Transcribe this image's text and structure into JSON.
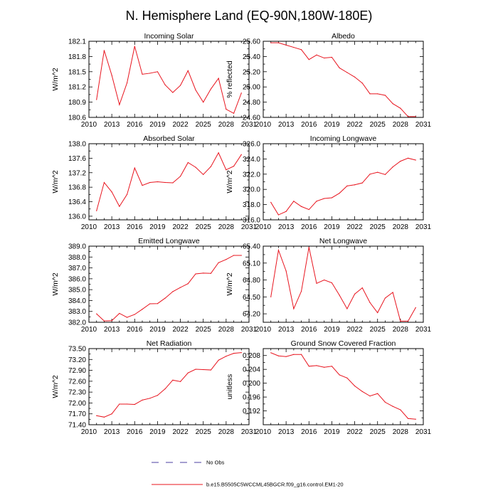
{
  "figure_title": "N. Hemisphere Land (EQ-90N,180W-180E)",
  "legend": {
    "entries": [
      {
        "label": "No Obs",
        "style": "dashed",
        "color": "#4b3fa0"
      },
      {
        "label": "b.e15.B5505C5WCCML45BGCR.f09_g16.control.EM1-20",
        "style": "solid",
        "color": "#e8141e"
      }
    ]
  },
  "colors": {
    "series": "#e8141e",
    "axis": "#000000"
  },
  "chart_data": [
    {
      "type": "line",
      "title": "Incoming Solar",
      "ylabel": "W/m^2",
      "xlim": [
        2010,
        2031
      ],
      "xticks": [
        "2010",
        "2013",
        "2016",
        "2019",
        "2022",
        "2025",
        "2028",
        "2031"
      ],
      "ylim": [
        180.6,
        182.1
      ],
      "yticks": [
        "180.6",
        "180.9",
        "181.2",
        "181.5",
        "181.8",
        "182.1"
      ],
      "x": [
        2011,
        2012,
        2013,
        2014,
        2015,
        2016,
        2017,
        2018,
        2019,
        2020,
        2021,
        2022,
        2023,
        2024,
        2025,
        2026,
        2027,
        2028,
        2029,
        2030
      ],
      "values": [
        180.95,
        181.92,
        181.43,
        180.85,
        181.28,
        182.0,
        181.45,
        181.47,
        181.5,
        181.24,
        181.09,
        181.23,
        181.52,
        181.14,
        180.9,
        181.16,
        181.37,
        180.76,
        180.68,
        181.08
      ]
    },
    {
      "type": "line",
      "title": "Albedo",
      "ylabel": "% reflected",
      "xlim": [
        2010,
        2031
      ],
      "xticks": [
        "2010",
        "2013",
        "2016",
        "2019",
        "2022",
        "2025",
        "2028",
        "2031"
      ],
      "ylim": [
        24.6,
        25.6
      ],
      "yticks": [
        "24.60",
        "24.80",
        "25.00",
        "25.20",
        "25.40",
        "25.60"
      ],
      "x": [
        2011,
        2012,
        2013,
        2014,
        2015,
        2016,
        2017,
        2018,
        2019,
        2020,
        2021,
        2022,
        2023,
        2024,
        2025,
        2026,
        2027,
        2028,
        2029,
        2030
      ],
      "values": [
        25.58,
        25.58,
        25.55,
        25.52,
        25.49,
        25.36,
        25.42,
        25.38,
        25.39,
        25.25,
        25.19,
        25.13,
        25.05,
        24.91,
        24.91,
        24.89,
        24.78,
        24.72,
        24.61,
        24.61
      ]
    },
    {
      "type": "line",
      "title": "Absorbed Solar",
      "ylabel": "W/m^2",
      "xlim": [
        2010,
        2031
      ],
      "xticks": [
        "2010",
        "2013",
        "2016",
        "2019",
        "2022",
        "2025",
        "2028",
        "2031"
      ],
      "ylim": [
        135.9,
        138.0
      ],
      "yticks": [
        "136.0",
        "136.4",
        "136.8",
        "137.2",
        "137.6",
        "138.0"
      ],
      "x": [
        2011,
        2012,
        2013,
        2014,
        2015,
        2016,
        2017,
        2018,
        2019,
        2020,
        2021,
        2022,
        2023,
        2024,
        2025,
        2026,
        2027,
        2028,
        2029,
        2030
      ],
      "values": [
        136.15,
        136.93,
        136.67,
        136.27,
        136.6,
        137.33,
        136.85,
        136.93,
        136.95,
        136.93,
        136.92,
        137.1,
        137.48,
        137.35,
        137.15,
        137.37,
        137.75,
        137.28,
        137.38,
        137.7
      ]
    },
    {
      "type": "line",
      "title": "Incoming Longwave",
      "ylabel": "W/m^2",
      "xlim": [
        2010,
        2031
      ],
      "xticks": [
        "2010",
        "2013",
        "2016",
        "2019",
        "2022",
        "2025",
        "2028",
        "2031"
      ],
      "ylim": [
        316.0,
        326.0
      ],
      "yticks": [
        "316.0",
        "318.0",
        "320.0",
        "322.0",
        "324.0",
        "326.0"
      ],
      "x": [
        2011,
        2012,
        2013,
        2014,
        2015,
        2016,
        2017,
        2018,
        2019,
        2020,
        2021,
        2022,
        2023,
        2024,
        2025,
        2026,
        2027,
        2028,
        2029,
        2030
      ],
      "values": [
        318.3,
        316.65,
        317.1,
        318.45,
        317.75,
        317.35,
        318.45,
        318.8,
        318.9,
        319.5,
        320.45,
        320.6,
        320.85,
        322.0,
        322.25,
        321.95,
        322.95,
        323.7,
        324.1,
        323.85
      ]
    },
    {
      "type": "line",
      "title": "Emitted Longwave",
      "ylabel": "W/m^2",
      "xlim": [
        2010,
        2031
      ],
      "xticks": [
        "2010",
        "2013",
        "2016",
        "2019",
        "2022",
        "2025",
        "2028",
        "2031"
      ],
      "ylim": [
        382.0,
        389.0
      ],
      "yticks": [
        "382.0",
        "383.0",
        "384.0",
        "385.0",
        "386.0",
        "387.0",
        "388.0",
        "389.0"
      ],
      "x": [
        2011,
        2012,
        2013,
        2014,
        2015,
        2016,
        2017,
        2018,
        2019,
        2020,
        2021,
        2022,
        2023,
        2024,
        2025,
        2026,
        2027,
        2028,
        2029,
        2030
      ],
      "values": [
        382.78,
        382.12,
        382.15,
        382.82,
        382.45,
        382.72,
        383.2,
        383.7,
        383.72,
        384.22,
        384.82,
        385.2,
        385.55,
        386.45,
        386.52,
        386.5,
        387.48,
        387.78,
        388.15,
        388.15
      ]
    },
    {
      "type": "line",
      "title": "Net Longwave",
      "ylabel": "W/m^2",
      "xlim": [
        2010,
        2031
      ],
      "xticks": [
        "2010",
        "2013",
        "2016",
        "2019",
        "2022",
        "2025",
        "2028",
        "2031"
      ],
      "ylim": [
        64.05,
        65.4
      ],
      "yticks": [
        "64.20",
        "64.50",
        "64.80",
        "65.10",
        "65.40"
      ],
      "x": [
        2011,
        2012,
        2013,
        2014,
        2015,
        2016,
        2017,
        2018,
        2019,
        2020,
        2021,
        2022,
        2023,
        2024,
        2025,
        2026,
        2027,
        2028,
        2029,
        2030
      ],
      "values": [
        64.5,
        65.33,
        64.96,
        64.29,
        64.6,
        65.38,
        64.74,
        64.8,
        64.75,
        64.53,
        64.29,
        64.55,
        64.66,
        64.4,
        64.22,
        64.48,
        64.58,
        64.07,
        64.07,
        64.31
      ]
    },
    {
      "type": "line",
      "title": "Net Radiation",
      "ylabel": "W/m^2",
      "xlim": [
        2010,
        2031
      ],
      "xticks": [
        "2010",
        "2013",
        "2016",
        "2019",
        "2022",
        "2025",
        "2028",
        "2031"
      ],
      "ylim": [
        71.4,
        73.5
      ],
      "yticks": [
        "71.40",
        "71.70",
        "72.00",
        "72.30",
        "72.60",
        "72.90",
        "73.20",
        "73.50"
      ],
      "x": [
        2011,
        2012,
        2013,
        2014,
        2015,
        2016,
        2017,
        2018,
        2019,
        2020,
        2021,
        2022,
        2023,
        2024,
        2025,
        2026,
        2027,
        2028,
        2029,
        2030
      ],
      "values": [
        71.65,
        71.61,
        71.7,
        71.97,
        71.97,
        71.96,
        72.08,
        72.13,
        72.21,
        72.39,
        72.63,
        72.59,
        72.83,
        72.93,
        72.92,
        72.91,
        73.18,
        73.29,
        73.37,
        73.39
      ]
    },
    {
      "type": "line",
      "title": "Ground Snow Covered Fraction",
      "ylabel": "unitless",
      "xlim": [
        2010,
        2031
      ],
      "xticks": [
        "2010",
        "2013",
        "2016",
        "2019",
        "2022",
        "2025",
        "2028",
        "2031"
      ],
      "ylim": [
        0.188,
        0.21
      ],
      "yticks": [
        "0.192",
        "0.196",
        "0.200",
        "0.204",
        "0.208"
      ],
      "x": [
        2011,
        2012,
        2013,
        2014,
        2015,
        2016,
        2017,
        2018,
        2019,
        2020,
        2021,
        2022,
        2023,
        2024,
        2025,
        2026,
        2027,
        2028,
        2029,
        2030
      ],
      "values": [
        0.2088,
        0.2079,
        0.2077,
        0.2083,
        0.2083,
        0.2049,
        0.2051,
        0.2046,
        0.2049,
        0.2024,
        0.2015,
        0.1992,
        0.1976,
        0.1963,
        0.197,
        0.1945,
        0.1933,
        0.1923,
        0.1898,
        0.1896
      ]
    }
  ]
}
